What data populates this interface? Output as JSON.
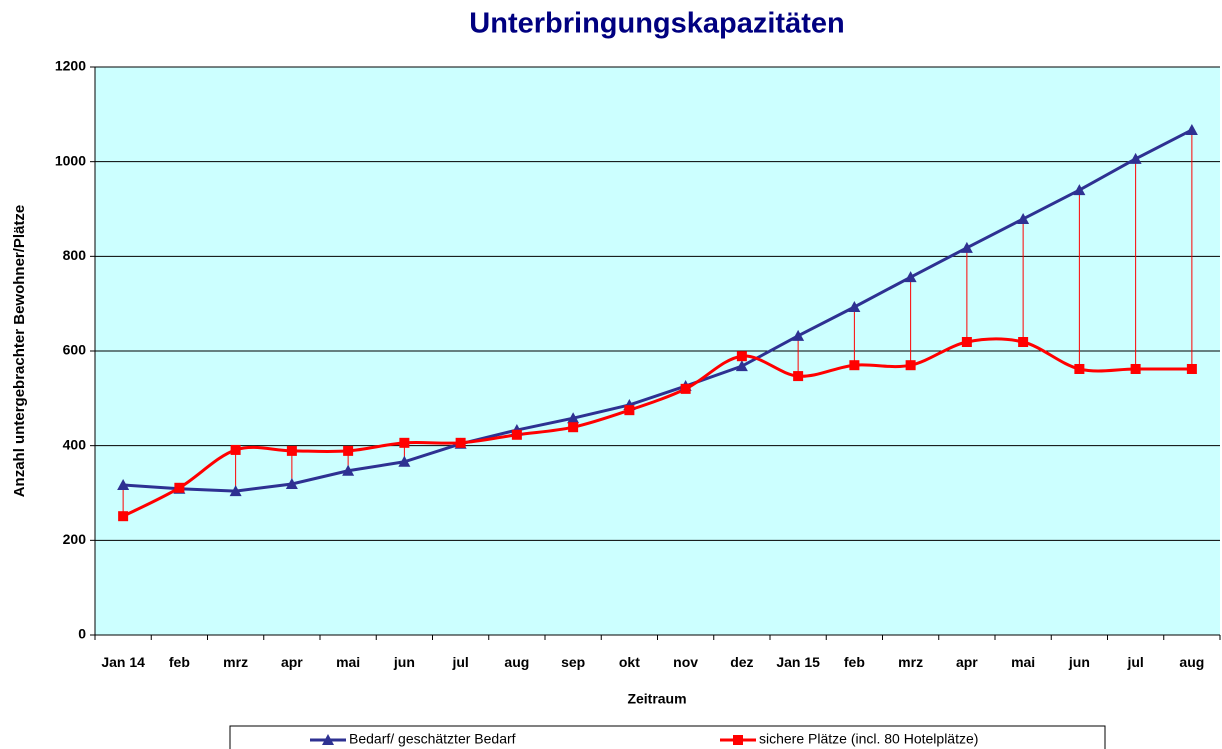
{
  "chart_data": {
    "type": "line",
    "title": "Unterbringungskapazitäten",
    "x_label": "Zeitraum",
    "y_label": "Anzahl untergebrachter Bewohner/Plätze",
    "categories": [
      "Jan 14",
      "feb",
      "mrz",
      "apr",
      "mai",
      "jun",
      "jul",
      "aug",
      "sep",
      "okt",
      "nov",
      "dez",
      "Jan 15",
      "feb",
      "mrz",
      "apr",
      "mai",
      "jun",
      "jul",
      "aug"
    ],
    "series": [
      {
        "name": "Bedarf/ geschätzter Bedarf",
        "color": "#2e3192",
        "marker": "triangle",
        "smooth": false,
        "values": [
          317,
          309,
          304,
          319,
          347,
          366,
          404,
          433,
          458,
          486,
          526,
          568,
          632,
          693,
          756,
          818,
          879,
          940,
          1006,
          1067
        ]
      },
      {
        "name": "sichere Plätze (incl. 80 Hotelplätze)",
        "color": "#ff0000",
        "marker": "square",
        "smooth": true,
        "values": [
          251,
          311,
          391,
          389,
          389,
          406,
          406,
          423,
          439,
          475,
          520,
          589,
          547,
          570,
          570,
          619,
          619,
          562,
          562,
          562
        ]
      }
    ],
    "ylim": [
      0,
      1200
    ],
    "yticks": [
      0,
      200,
      400,
      600,
      800,
      1000,
      1200
    ],
    "grid": true,
    "high_low_lines": true,
    "plot_background": "#ccffff",
    "legend": "bottom"
  }
}
